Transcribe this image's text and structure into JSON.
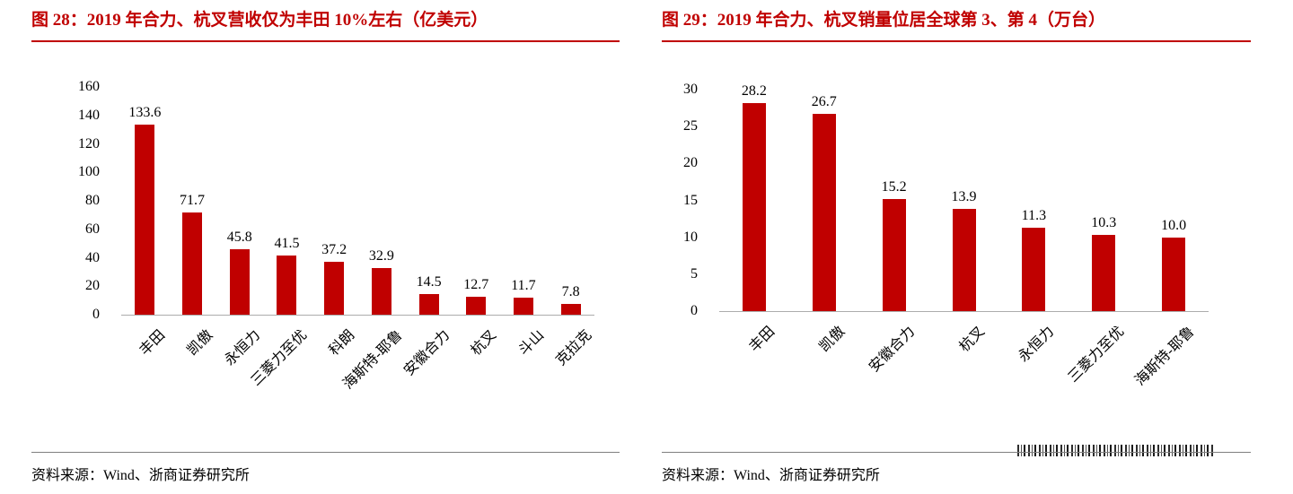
{
  "accent_color": "#C00000",
  "chart_data": [
    {
      "type": "bar",
      "title": "图 28：2019 年合力、杭叉营收仅为丰田 10%左右（亿美元）",
      "categories": [
        "丰田",
        "凯傲",
        "永恒力",
        "三菱力至优",
        "科朗",
        "海斯特-耶鲁",
        "安徽合力",
        "杭叉",
        "斗山",
        "克拉克"
      ],
      "values": [
        133.6,
        71.7,
        45.8,
        41.5,
        37.2,
        32.9,
        14.5,
        12.7,
        11.7,
        7.8
      ],
      "xlabel": "",
      "ylabel": "",
      "ylim": [
        0,
        160
      ],
      "yticks": [
        0,
        20,
        40,
        60,
        80,
        100,
        120,
        140,
        160
      ],
      "grid": false,
      "legend": false,
      "bar_color": "#C00000",
      "source": "资料来源：Wind、浙商证券研究所"
    },
    {
      "type": "bar",
      "title": "图 29：2019 年合力、杭叉销量位居全球第 3、第 4（万台）",
      "categories": [
        "丰田",
        "凯傲",
        "安徽合力",
        "杭叉",
        "永恒力",
        "三菱力至优",
        "海斯特-耶鲁"
      ],
      "values": [
        28.2,
        26.7,
        15.2,
        13.9,
        11.3,
        10.3,
        10.0
      ],
      "xlabel": "",
      "ylabel": "",
      "ylim": [
        0,
        30
      ],
      "yticks": [
        0,
        5,
        10,
        15,
        20,
        25,
        30
      ],
      "grid": false,
      "legend": false,
      "bar_color": "#C00000",
      "source": "资料来源：Wind、浙商证券研究所"
    }
  ]
}
